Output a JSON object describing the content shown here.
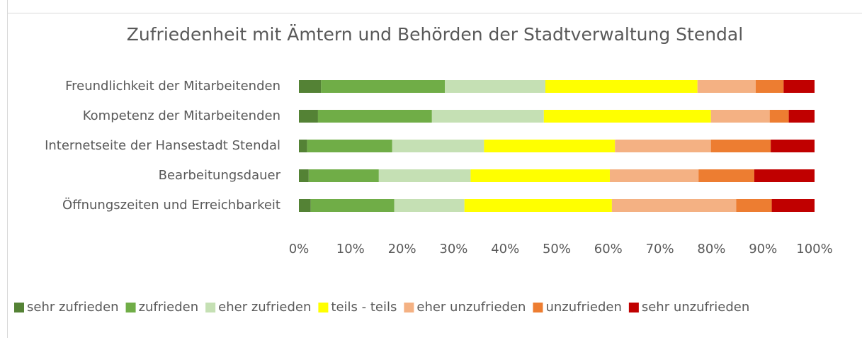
{
  "chart_data": {
    "type": "stacked-barh",
    "title": "Zufriedenheit mit Ämtern und Behörden der Stadtverwaltung Stendal",
    "categories": [
      "Freundlichkeit der Mitarbeitenden",
      "Kompetenz der Mitarbeitenden",
      "Internetseite der Hansestadt Stendal",
      "Bearbeitungsdauer",
      "Öffnungszeiten und Erreichbarkeit"
    ],
    "series": [
      {
        "name": "sehr zufrieden",
        "color": "#548235",
        "values": [
          4.3,
          3.7,
          1.6,
          1.9,
          2.3
        ]
      },
      {
        "name": "zufrieden",
        "color": "#70ad47",
        "values": [
          24.0,
          22.1,
          16.5,
          13.6,
          16.2
        ]
      },
      {
        "name": "eher zufrieden",
        "color": "#c5e0b4",
        "values": [
          19.5,
          21.7,
          17.8,
          17.8,
          13.6
        ]
      },
      {
        "name": "teils - teils",
        "color": "#ffff00",
        "values": [
          29.5,
          32.4,
          25.4,
          27.0,
          28.6
        ]
      },
      {
        "name": "eher unzufrieden",
        "color": "#f4b183",
        "values": [
          11.3,
          11.4,
          18.6,
          17.2,
          24.1
        ]
      },
      {
        "name": "unzufrieden",
        "color": "#ed7d31",
        "values": [
          5.4,
          3.7,
          11.6,
          10.8,
          6.9
        ]
      },
      {
        "name": "sehr unzufrieden",
        "color": "#c00000",
        "values": [
          6.0,
          5.0,
          8.5,
          11.7,
          8.3
        ]
      }
    ],
    "xlim": [
      0,
      100
    ],
    "xticks": [
      {
        "value": 0,
        "label": "0%"
      },
      {
        "value": 10,
        "label": "10%"
      },
      {
        "value": 20,
        "label": "20%"
      },
      {
        "value": 30,
        "label": "30%"
      },
      {
        "value": 40,
        "label": "40%"
      },
      {
        "value": 50,
        "label": "50%"
      },
      {
        "value": 60,
        "label": "60%"
      },
      {
        "value": 70,
        "label": "70%"
      },
      {
        "value": 80,
        "label": "80%"
      },
      {
        "value": 90,
        "label": "90%"
      },
      {
        "value": 100,
        "label": "100%"
      }
    ],
    "grid": false,
    "legend": "bottom"
  }
}
